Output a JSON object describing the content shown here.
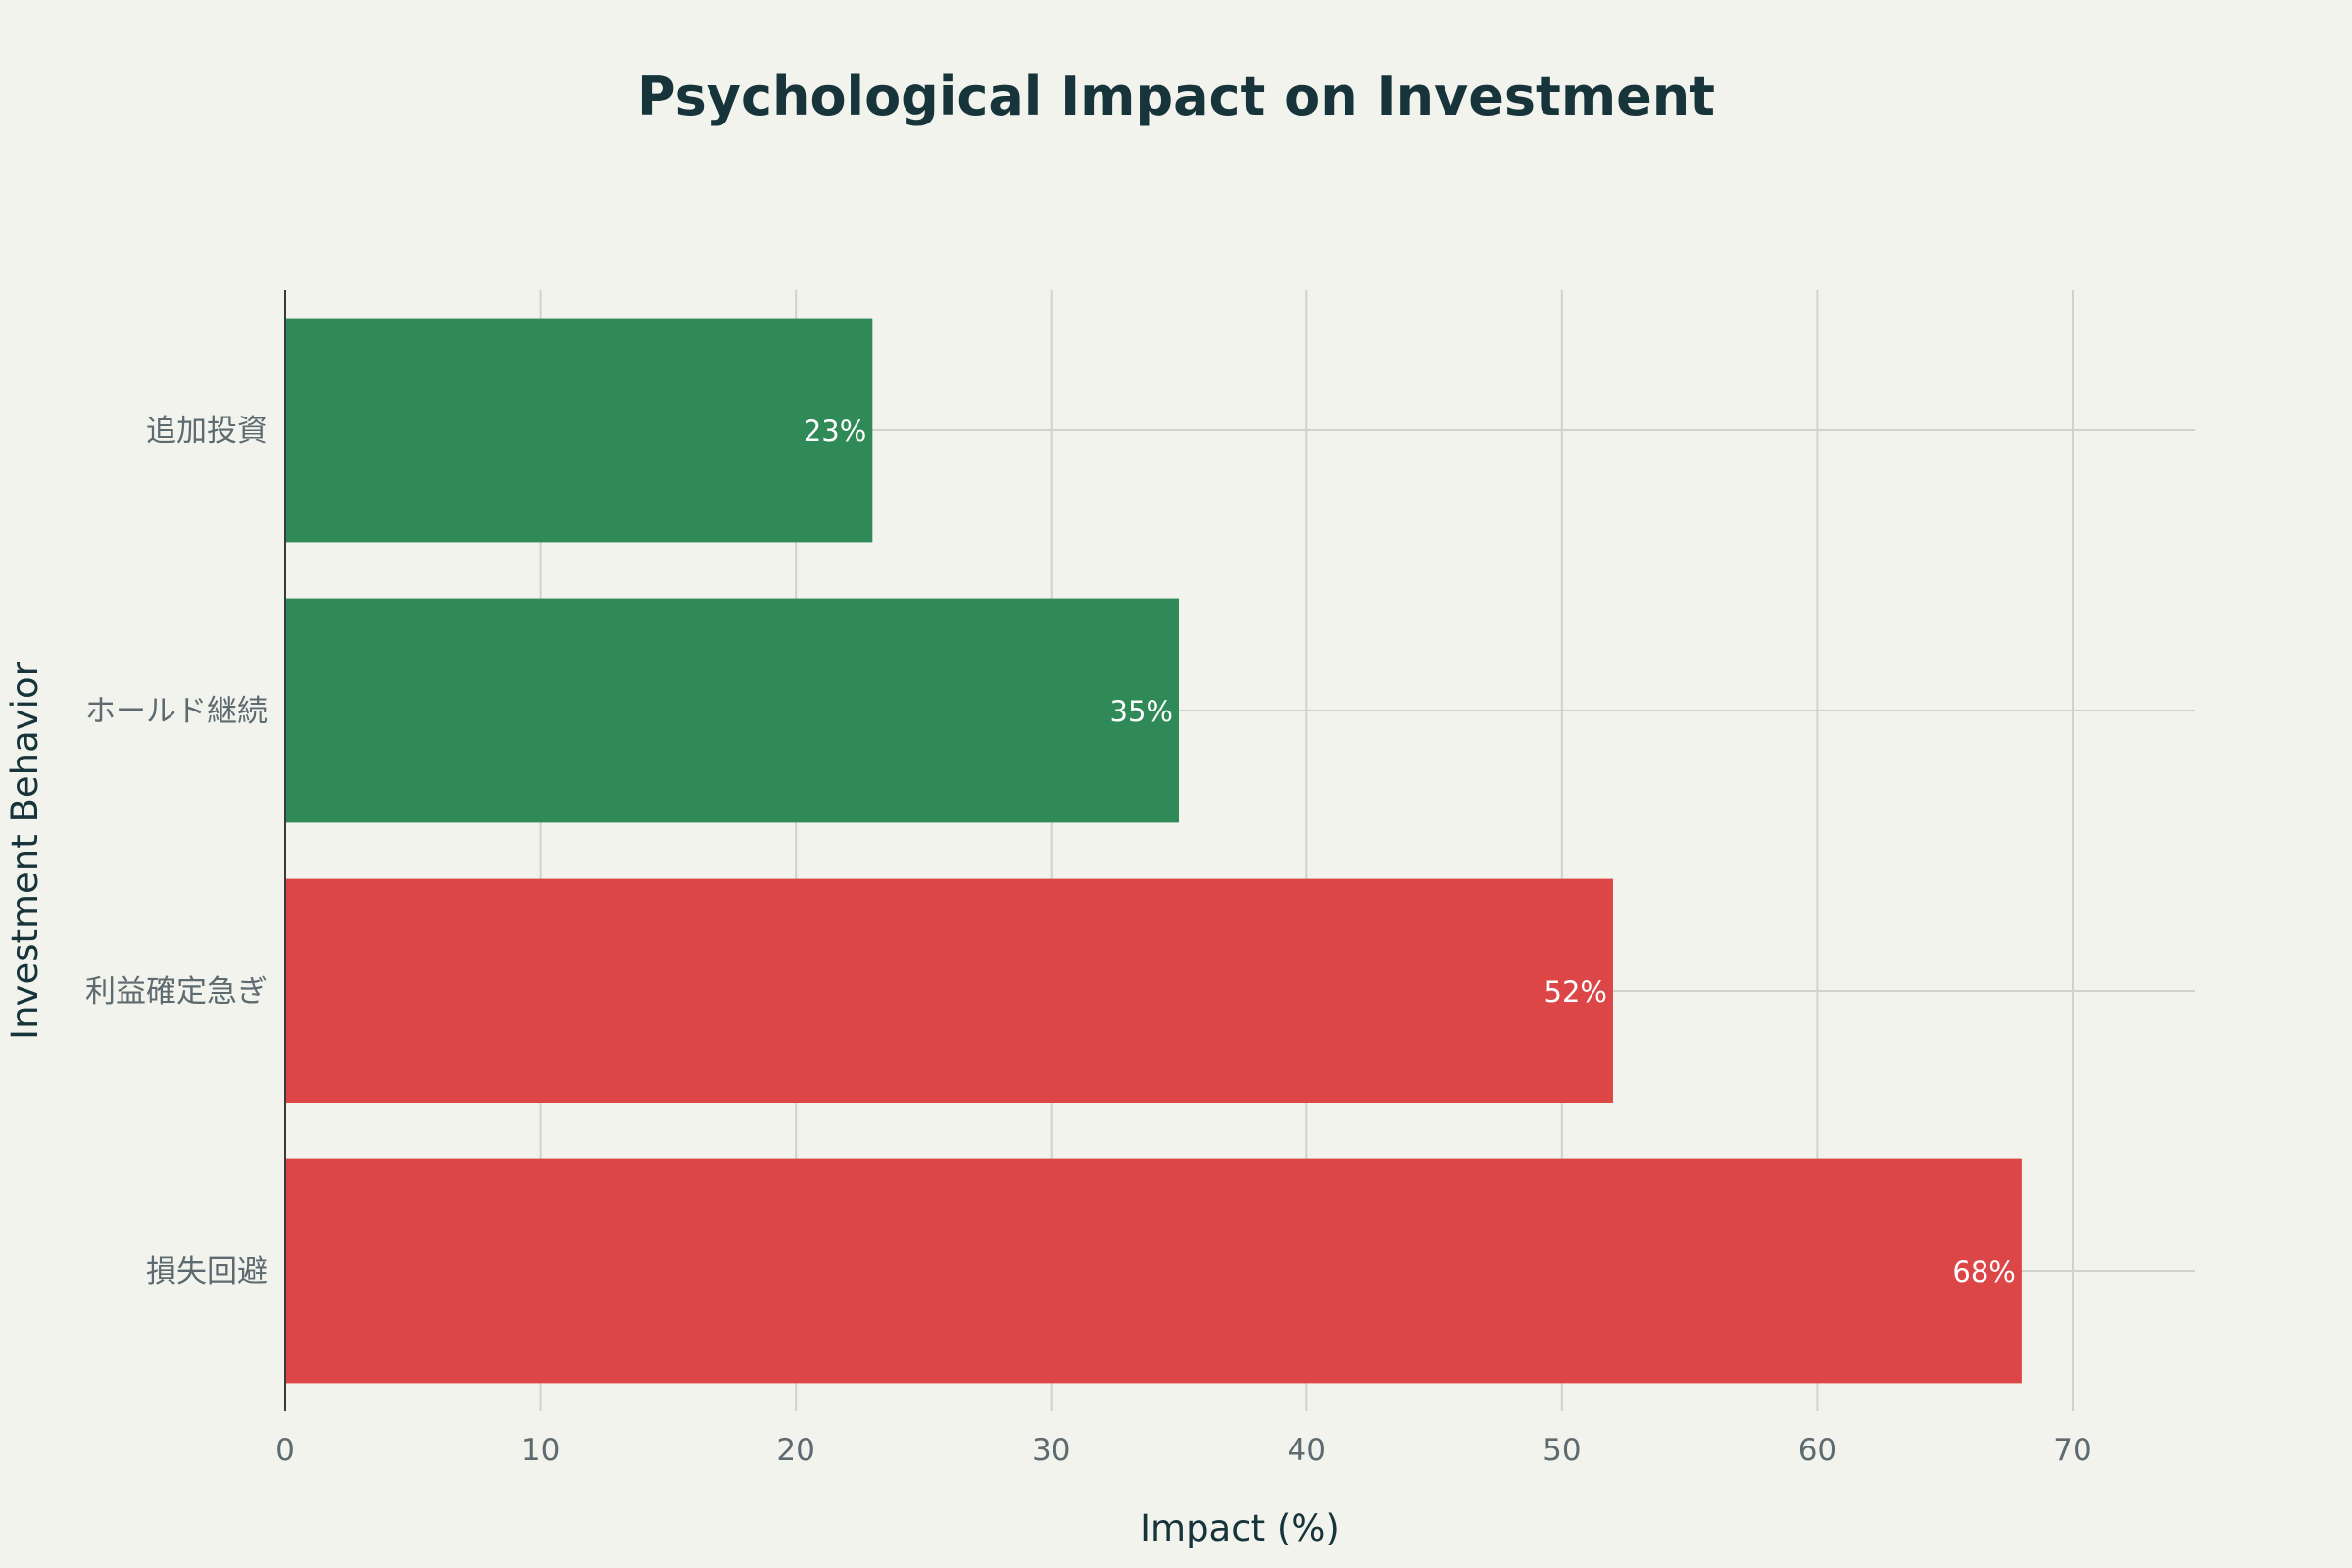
{
  "colors": {
    "background": "#f3f3ee",
    "positive": "#2f8a57",
    "negative": "#dc4647",
    "title": "#16343a",
    "tick": "#5d6b70",
    "grid": "#d0d2cc"
  },
  "chart_data": {
    "type": "bar",
    "orientation": "horizontal",
    "title": "Psychological Impact on Investment",
    "xlabel": "Impact (%)",
    "ylabel": "Investment Behavior",
    "xlim": [
      0,
      75
    ],
    "xticks": [
      0,
      10,
      20,
      30,
      40,
      50,
      60,
      70
    ],
    "grid": true,
    "legend": "none",
    "categories": [
      "追加投資",
      "ホールド継続",
      "利益確定急ぎ",
      "損失回避"
    ],
    "values": [
      23,
      35,
      52,
      68
    ],
    "data_labels": [
      "23%",
      "35%",
      "52%",
      "68%"
    ],
    "bar_colors": [
      "#2f8a57",
      "#2f8a57",
      "#dc4647",
      "#dc4647"
    ]
  }
}
